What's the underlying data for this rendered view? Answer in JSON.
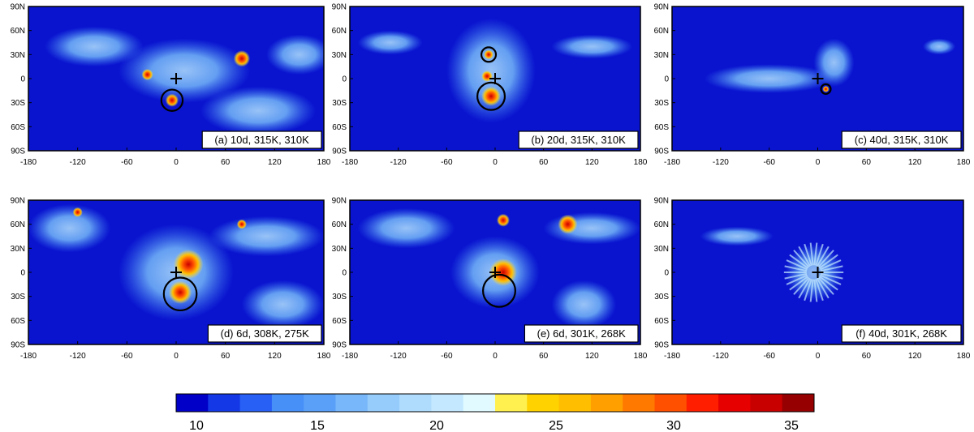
{
  "chart_data": {
    "type": "heatmap",
    "x_ticks": [
      "-180",
      "-120",
      "-60",
      "0",
      "60",
      "120",
      "180"
    ],
    "y_ticks": [
      "90N",
      "60N",
      "30N",
      "0",
      "30S",
      "60S",
      "90S"
    ],
    "xlim": [
      -180,
      180
    ],
    "ylim": [
      -90,
      90
    ],
    "panels": [
      {
        "label": "(a) 10d, 315K, 310K",
        "plus": [
          0,
          0
        ],
        "circles": [
          {
            "lon": -5,
            "lat": -27,
            "r": 13
          }
        ],
        "hot": [
          {
            "lon": -5,
            "lat": -27,
            "r": 8
          },
          {
            "lon": -35,
            "lat": 5,
            "r": 7
          },
          {
            "lon": 80,
            "lat": 25,
            "r": 10
          }
        ],
        "cool": [
          {
            "lon": 10,
            "lat": 10,
            "rx": 80,
            "ry": 40
          },
          {
            "lon": -100,
            "lat": 40,
            "rx": 60,
            "ry": 25
          },
          {
            "lon": 100,
            "lat": -40,
            "rx": 70,
            "ry": 30
          },
          {
            "lon": 150,
            "lat": 30,
            "rx": 40,
            "ry": 25
          }
        ]
      },
      {
        "label": "(b) 20d, 315K, 310K",
        "plus": [
          0,
          0
        ],
        "circles": [
          {
            "lon": -8,
            "lat": 30,
            "r": 9
          },
          {
            "lon": -5,
            "lat": -22,
            "r": 17
          }
        ],
        "hot": [
          {
            "lon": -8,
            "lat": 30,
            "r": 6
          },
          {
            "lon": -5,
            "lat": -22,
            "r": 12
          },
          {
            "lon": -10,
            "lat": 3,
            "r": 7
          }
        ],
        "cool": [
          {
            "lon": -5,
            "lat": 10,
            "rx": 55,
            "ry": 65
          },
          {
            "lon": -130,
            "lat": 45,
            "rx": 40,
            "ry": 15
          },
          {
            "lon": 120,
            "lat": 40,
            "rx": 50,
            "ry": 15
          }
        ]
      },
      {
        "label": "(c) 40d, 315K, 310K",
        "plus": [
          0,
          0
        ],
        "circles": [
          {
            "lon": 10,
            "lat": -13,
            "r": 6
          }
        ],
        "hot": [
          {
            "lon": 10,
            "lat": -13,
            "r": 4
          }
        ],
        "cool": [
          {
            "lon": -60,
            "lat": 0,
            "rx": 80,
            "ry": 18
          },
          {
            "lon": 20,
            "lat": 20,
            "rx": 25,
            "ry": 30
          },
          {
            "lon": 150,
            "lat": 40,
            "rx": 20,
            "ry": 10
          }
        ]
      },
      {
        "label": "(d) 6d, 308K, 275K",
        "plus": [
          0,
          0
        ],
        "circles": [
          {
            "lon": 5,
            "lat": -27,
            "r": 20
          }
        ],
        "hot": [
          {
            "lon": 15,
            "lat": 10,
            "r": 18
          },
          {
            "lon": 5,
            "lat": -25,
            "r": 14
          },
          {
            "lon": -120,
            "lat": 75,
            "r": 6
          },
          {
            "lon": 80,
            "lat": 60,
            "r": 6
          }
        ],
        "cool": [
          {
            "lon": 0,
            "lat": 0,
            "rx": 70,
            "ry": 60
          },
          {
            "lon": -130,
            "lat": 55,
            "rx": 50,
            "ry": 30
          },
          {
            "lon": 110,
            "lat": 45,
            "rx": 70,
            "ry": 25
          },
          {
            "lon": 130,
            "lat": -40,
            "rx": 50,
            "ry": 30
          }
        ]
      },
      {
        "label": "(e) 6d, 301K, 268K",
        "plus": [
          0,
          0
        ],
        "circles": [
          {
            "lon": 5,
            "lat": -23,
            "r": 20
          }
        ],
        "hot": [
          {
            "lon": 10,
            "lat": 0,
            "r": 17
          },
          {
            "lon": 90,
            "lat": 60,
            "r": 12
          },
          {
            "lon": 10,
            "lat": 65,
            "r": 8
          }
        ],
        "cool": [
          {
            "lon": 0,
            "lat": 0,
            "rx": 55,
            "ry": 45
          },
          {
            "lon": -110,
            "lat": 55,
            "rx": 60,
            "ry": 25
          },
          {
            "lon": 120,
            "lat": 55,
            "rx": 60,
            "ry": 20
          },
          {
            "lon": 110,
            "lat": -40,
            "rx": 40,
            "ry": 30
          }
        ]
      },
      {
        "label": "(f) 40d, 301K, 268K",
        "plus": [
          0,
          0
        ],
        "circles": [],
        "hot": [],
        "cool": [
          {
            "lon": -100,
            "lat": 45,
            "rx": 45,
            "ry": 12
          }
        ],
        "ring": {
          "lon": -5,
          "lat": 0,
          "r": 35
        }
      }
    ],
    "colorbar": {
      "colors": [
        "#0000c8",
        "#1438e6",
        "#2860f5",
        "#4690f8",
        "#5aa0f8",
        "#78b8fa",
        "#96ccfc",
        "#afdcfd",
        "#c3e8ff",
        "#e1faff",
        "#fff050",
        "#ffd200",
        "#ffbe00",
        "#ffa000",
        "#ff7800",
        "#ff5000",
        "#ff1e00",
        "#e60000",
        "#c80000",
        "#960000"
      ],
      "labels": [
        "10",
        "15",
        "20",
        "25",
        "30",
        "35"
      ]
    }
  }
}
